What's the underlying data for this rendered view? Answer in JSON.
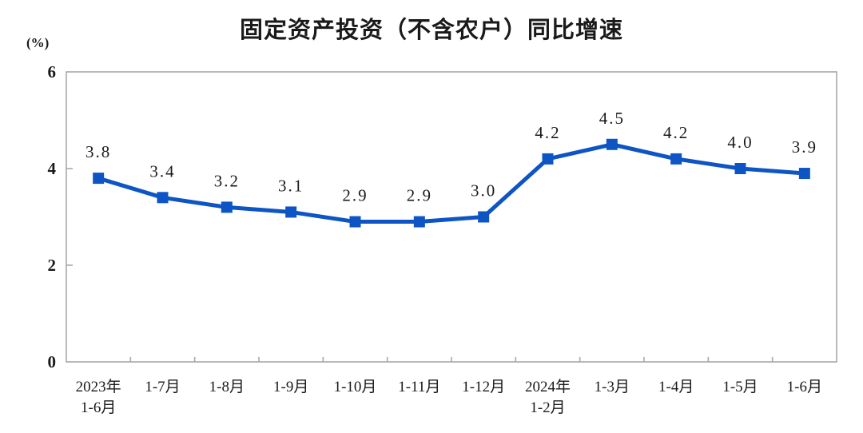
{
  "chart_data": {
    "type": "line",
    "title": "固定资产投资（不含农户）同比增速",
    "ylabel": "(%)",
    "xlabel": "",
    "categories": [
      "2023年\n1-6月",
      "1-7月",
      "1-8月",
      "1-9月",
      "1-10月",
      "1-11月",
      "1-12月",
      "2024年\n1-2月",
      "1-3月",
      "1-4月",
      "1-5月",
      "1-6月"
    ],
    "values": [
      3.8,
      3.4,
      3.2,
      3.1,
      2.9,
      2.9,
      3.0,
      4.2,
      4.5,
      4.2,
      4.0,
      3.9
    ],
    "point_labels": [
      "3.8",
      "3.4",
      "3.2",
      "3.1",
      "2.9",
      "2.9",
      "3.0",
      "4.2",
      "4.5",
      "4.2",
      "4.0",
      "3.9"
    ],
    "ylim": [
      0,
      6
    ],
    "y_ticks": [
      0,
      2,
      4,
      6
    ],
    "grid": false,
    "legend": "none",
    "colors": {
      "line": "#0d55c4",
      "marker": "#0d55c4",
      "axis": "#a8a8a8",
      "text": "#1a1a1a"
    }
  }
}
